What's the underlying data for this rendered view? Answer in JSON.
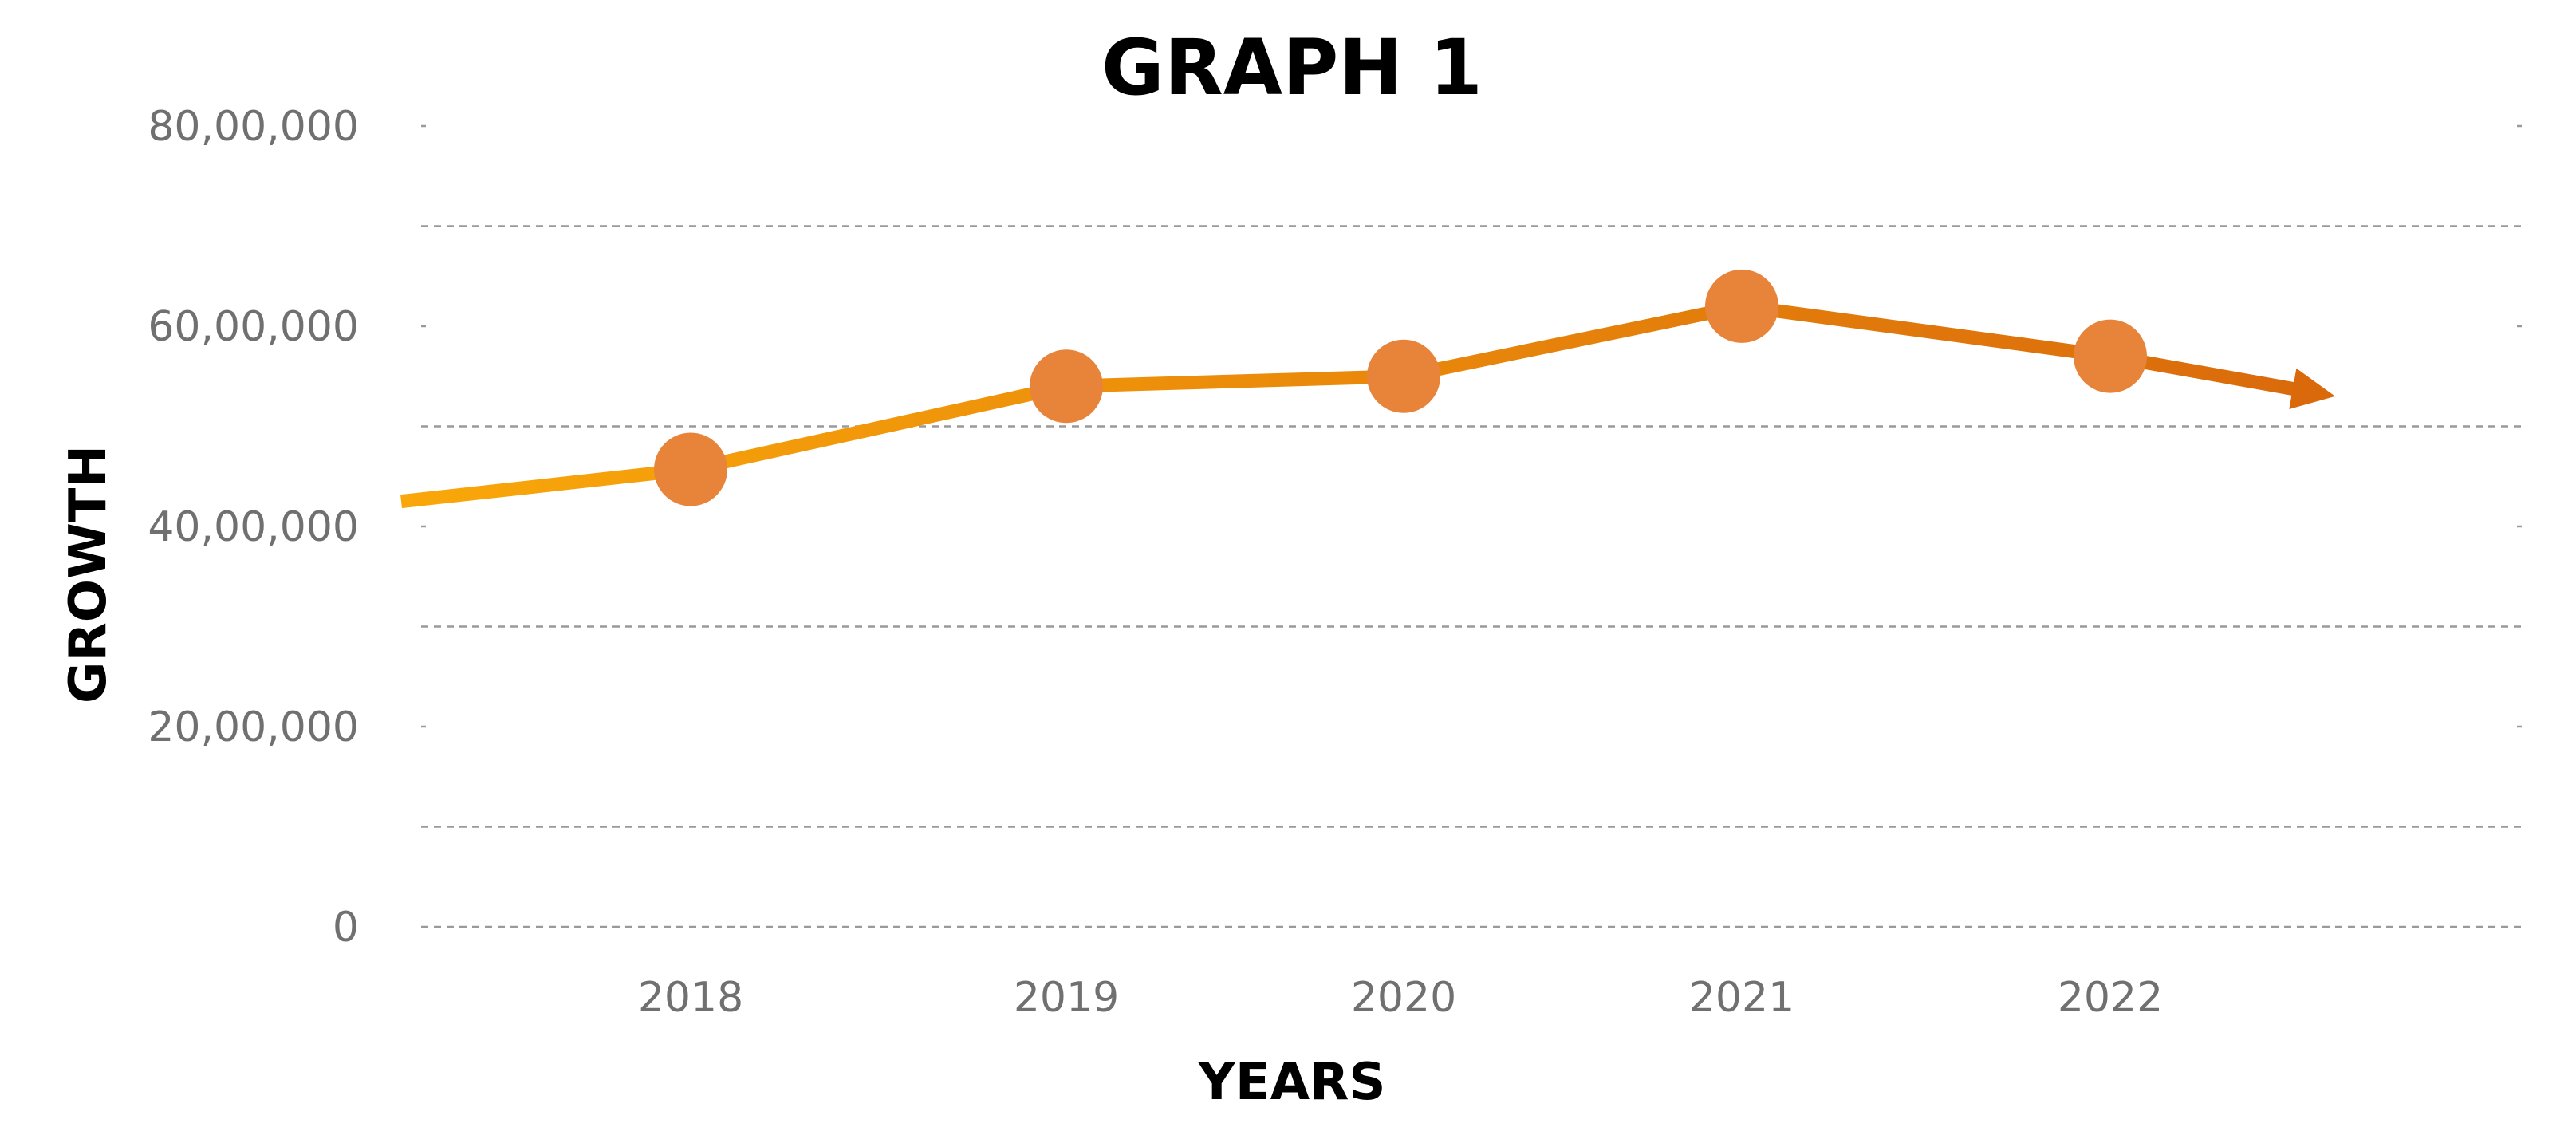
{
  "chart_data": {
    "type": "line",
    "title": "GRAPH 1",
    "xlabel": "YEARS",
    "ylabel": "GROWTH",
    "categories": [
      "2018",
      "2019",
      "2020",
      "2021",
      "2022"
    ],
    "series": [
      {
        "values": [
          4570000,
          5400000,
          5500000,
          6200000,
          5700000
        ],
        "markers": true,
        "trend_start_value": 4250000,
        "trend_end_value": 5300000,
        "arrow_end": true,
        "colors": {
          "start": "#F9A70A",
          "end": "#D9690B",
          "marker": "#E8843A"
        }
      }
    ],
    "ylim": [
      0,
      8000000
    ],
    "y_tick_values": [
      0,
      2000000,
      4000000,
      6000000,
      8000000
    ],
    "y_tick_labels": [
      "0",
      "20,00,000",
      "40,00,000",
      "60,00,000",
      "80,00,000"
    ],
    "grid": true,
    "grid_style": "dashed"
  }
}
